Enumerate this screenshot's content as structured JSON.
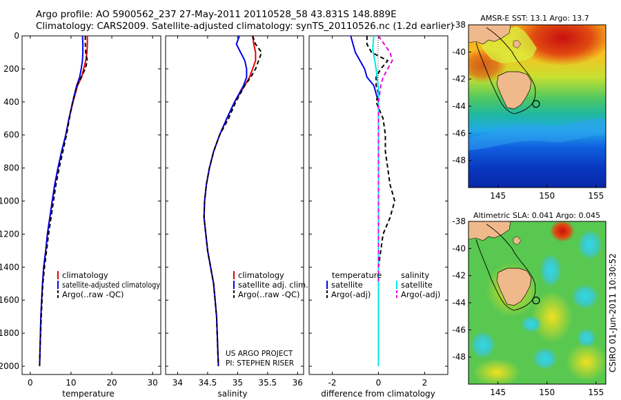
{
  "header": {
    "line1": "Argo profile: AO 5900562_237 27-May-2011 20110528_58 43.831S 148.889E",
    "line2": "Climatology: CARS2009. Satellite-adjusted climatology: synTS_20110526.nc (1.2d earlier)"
  },
  "colors": {
    "climatology": "#e00000",
    "satellite": "#0000e6",
    "argo": "#000000",
    "satellite_salinity": "#00e6e6",
    "argo_adj_salinity": "#e600e6"
  },
  "chart_data": [
    {
      "id": "temperature",
      "type": "line",
      "xlabel": "temperature",
      "ylabel": "",
      "xlim": [
        -2,
        32
      ],
      "ylim": [
        2050,
        0
      ],
      "xticks": [
        0,
        10,
        20,
        30
      ],
      "xtick_labels": [
        "0",
        "10",
        "20",
        "30"
      ],
      "yticks": [
        0,
        200,
        400,
        600,
        800,
        1000,
        1200,
        1400,
        1600,
        1800,
        2000
      ],
      "ytick_labels": [
        "0",
        "200",
        "400",
        "600",
        "800",
        "1000",
        "1200",
        "1400",
        "1600",
        "1800",
        "2000"
      ],
      "legend": [
        "climatology",
        "satellite-adjusted climatology",
        "Argo(..raw -QC)"
      ],
      "series": [
        {
          "name": "climatology",
          "color": "#e00000",
          "dash": false,
          "x": [
            14.0,
            14.0,
            13.9,
            13.6,
            13.1,
            12.6,
            11.6,
            10.5,
            9.5,
            8.7,
            7.7,
            6.8,
            6.0,
            5.4,
            4.8,
            4.2,
            3.8,
            3.3,
            3.0,
            2.6,
            2.4,
            2.3
          ],
          "y": [
            0,
            50,
            100,
            150,
            200,
            250,
            300,
            400,
            500,
            600,
            700,
            800,
            900,
            1000,
            1100,
            1200,
            1300,
            1400,
            1500,
            1700,
            1900,
            2000
          ]
        },
        {
          "name": "satellite",
          "color": "#0000e6",
          "dash": false,
          "x": [
            12.8,
            12.9,
            12.9,
            12.8,
            12.5,
            12.1,
            11.4,
            10.4,
            9.5,
            8.7,
            7.7,
            6.8,
            6.0,
            5.4,
            4.8,
            4.2,
            3.8,
            3.3,
            3.0,
            2.6,
            2.4,
            2.3
          ],
          "y": [
            0,
            50,
            100,
            150,
            200,
            250,
            300,
            400,
            500,
            600,
            700,
            800,
            900,
            1000,
            1100,
            1200,
            1300,
            1400,
            1500,
            1700,
            1900,
            2000
          ]
        },
        {
          "name": "Argo",
          "color": "#000000",
          "dash": true,
          "x": [
            13.5,
            13.5,
            13.6,
            14.0,
            13.5,
            12.5,
            11.5,
            10.4,
            9.6,
            8.9,
            8.0,
            7.1,
            6.3,
            5.7,
            5.1,
            4.5,
            4.0,
            3.5,
            3.1,
            2.7,
            2.4,
            2.3
          ],
          "y": [
            0,
            50,
            100,
            150,
            200,
            250,
            300,
            400,
            500,
            600,
            700,
            800,
            900,
            1000,
            1100,
            1200,
            1300,
            1400,
            1500,
            1700,
            1900,
            2000
          ]
        }
      ]
    },
    {
      "id": "salinity",
      "type": "line",
      "xlabel": "salinity",
      "xlim": [
        33.8,
        36.1
      ],
      "ylim": [
        2050,
        0
      ],
      "xticks": [
        34,
        34.5,
        35,
        35.5,
        36
      ],
      "xtick_labels": [
        "34",
        "34.5",
        "35",
        "35.5",
        "36"
      ],
      "legend": [
        "climatology",
        "satellite adj. clim.",
        "Argo(..raw -QC)"
      ],
      "annotation": [
        "US ARGO PROJECT",
        "PI: STEPHEN RISER"
      ],
      "series": [
        {
          "name": "climatology",
          "color": "#e00000",
          "dash": false,
          "x": [
            35.25,
            35.27,
            35.3,
            35.3,
            35.25,
            35.2,
            35.12,
            34.95,
            34.82,
            34.7,
            34.6,
            34.53,
            34.48,
            34.45,
            34.44,
            34.47,
            34.5,
            34.55,
            34.6,
            34.65,
            34.68
          ],
          "y": [
            0,
            50,
            100,
            150,
            200,
            250,
            300,
            400,
            500,
            600,
            700,
            800,
            900,
            1000,
            1100,
            1200,
            1300,
            1400,
            1500,
            1700,
            2000
          ]
        },
        {
          "name": "satellite",
          "color": "#0000e6",
          "dash": false,
          "x": [
            35.03,
            34.98,
            35.05,
            35.12,
            35.15,
            35.15,
            35.1,
            34.95,
            34.82,
            34.7,
            34.6,
            34.53,
            34.48,
            34.45,
            34.44,
            34.47,
            34.5,
            34.55,
            34.6,
            34.65,
            34.68
          ],
          "y": [
            0,
            50,
            100,
            150,
            200,
            250,
            300,
            400,
            500,
            600,
            700,
            800,
            900,
            1000,
            1100,
            1200,
            1300,
            1400,
            1500,
            1700,
            2000
          ]
        },
        {
          "name": "Argo",
          "color": "#000000",
          "dash": true,
          "x": [
            35.25,
            35.3,
            35.4,
            35.35,
            35.3,
            35.22,
            35.12,
            34.97,
            34.85,
            34.7,
            34.6,
            34.53,
            34.48,
            34.45,
            34.44,
            34.47,
            34.5,
            34.55,
            34.6,
            34.65,
            34.68
          ],
          "y": [
            0,
            50,
            100,
            150,
            200,
            250,
            300,
            400,
            500,
            600,
            700,
            800,
            900,
            1000,
            1100,
            1200,
            1300,
            1400,
            1500,
            1700,
            2000
          ]
        }
      ]
    },
    {
      "id": "difference",
      "type": "line",
      "xlabel": "difference from climatology",
      "xlim": [
        -3.0,
        3.0
      ],
      "ylim": [
        2050,
        0
      ],
      "xticks": [
        -2,
        0,
        2
      ],
      "xtick_labels": [
        "-2",
        "0",
        "2"
      ],
      "legend_groups": [
        {
          "title": "temperature",
          "items": [
            "satellite",
            "Argo(-adj)"
          ]
        },
        {
          "title": "salinity",
          "items": [
            "satellite",
            "Argo(-adj)"
          ]
        }
      ],
      "series": [
        {
          "name": "temperature satellite",
          "color": "#0000e6",
          "dash": false,
          "x": [
            -1.2,
            -1.1,
            -1.0,
            -0.8,
            -0.6,
            -0.5,
            -0.2,
            -0.1,
            0.0,
            0.0,
            0.0,
            0.0,
            0.0,
            0.0,
            0.0,
            0.0,
            0.0,
            0.0,
            0.0,
            0.0
          ],
          "y": [
            0,
            50,
            100,
            150,
            200,
            250,
            300,
            350,
            400,
            500,
            600,
            800,
            1000,
            1200,
            1400,
            1500,
            1600,
            1700,
            1900,
            2000
          ]
        },
        {
          "name": "temperature Argo(-adj)",
          "color": "#000000",
          "dash": true,
          "x": [
            -0.5,
            -0.5,
            -0.3,
            0.4,
            0.1,
            -0.1,
            -0.1,
            0.0,
            -0.1,
            0.2,
            0.3,
            0.3,
            0.4,
            0.5,
            0.7,
            0.5,
            0.2,
            0.0,
            0.0,
            0.0,
            0.0
          ],
          "y": [
            0,
            50,
            100,
            150,
            200,
            250,
            300,
            350,
            400,
            500,
            600,
            700,
            800,
            900,
            1000,
            1100,
            1200,
            1400,
            1600,
            1800,
            2000
          ]
        },
        {
          "name": "salinity satellite",
          "color": "#00e6e6",
          "dash": false,
          "x": [
            -0.2,
            -0.25,
            -0.2,
            -0.15,
            -0.1,
            -0.05,
            0.0,
            0.0,
            0.0,
            0.0,
            0.0,
            0.0,
            0.0
          ],
          "y": [
            0,
            80,
            120,
            160,
            200,
            260,
            320,
            400,
            600,
            900,
            1200,
            1600,
            2000
          ]
        },
        {
          "name": "salinity Argo(-adj)",
          "color": "#e600e6",
          "dash": true,
          "x": [
            0.0,
            0.3,
            0.5,
            0.6,
            0.4,
            0.2,
            0.1,
            0.0,
            0.0,
            0.0,
            0.0,
            0.0
          ],
          "y": [
            0,
            60,
            100,
            150,
            200,
            250,
            300,
            400,
            600,
            900,
            1200,
            1500
          ]
        }
      ]
    },
    {
      "id": "sst-map",
      "type": "heatmap",
      "title": "AMSR-E SST: 13.1 Argo: 13.7",
      "xlim": [
        142,
        156
      ],
      "ylim": [
        -50,
        -38
      ],
      "xticks": [
        145,
        150,
        155
      ],
      "xtick_labels": [
        "145",
        "150",
        "155"
      ],
      "yticks": [
        -38,
        -40,
        -42,
        -44,
        -46,
        -48
      ],
      "ytick_labels": [
        "-38",
        "-40",
        "-42",
        "-44",
        "-46",
        "-48"
      ],
      "marker": {
        "lon": 148.889,
        "lat": -43.831
      }
    },
    {
      "id": "sla-map",
      "type": "heatmap",
      "title": "Altimetric SLA: 0.041 Argo: 0.045",
      "xlim": [
        142,
        156
      ],
      "ylim": [
        -50,
        -38
      ],
      "xticks": [
        145,
        150,
        155
      ],
      "xtick_labels": [
        "145",
        "150",
        "155"
      ],
      "yticks": [
        -38,
        -40,
        -42,
        -44,
        -46,
        -48
      ],
      "ytick_labels": [
        "-38",
        "-40",
        "-42",
        "-44",
        "-46",
        "-48"
      ],
      "marker": {
        "lon": 148.889,
        "lat": -43.831
      }
    }
  ],
  "footer": {
    "stamp": "CSIRO 01-Jun-2011 10:30:52"
  }
}
